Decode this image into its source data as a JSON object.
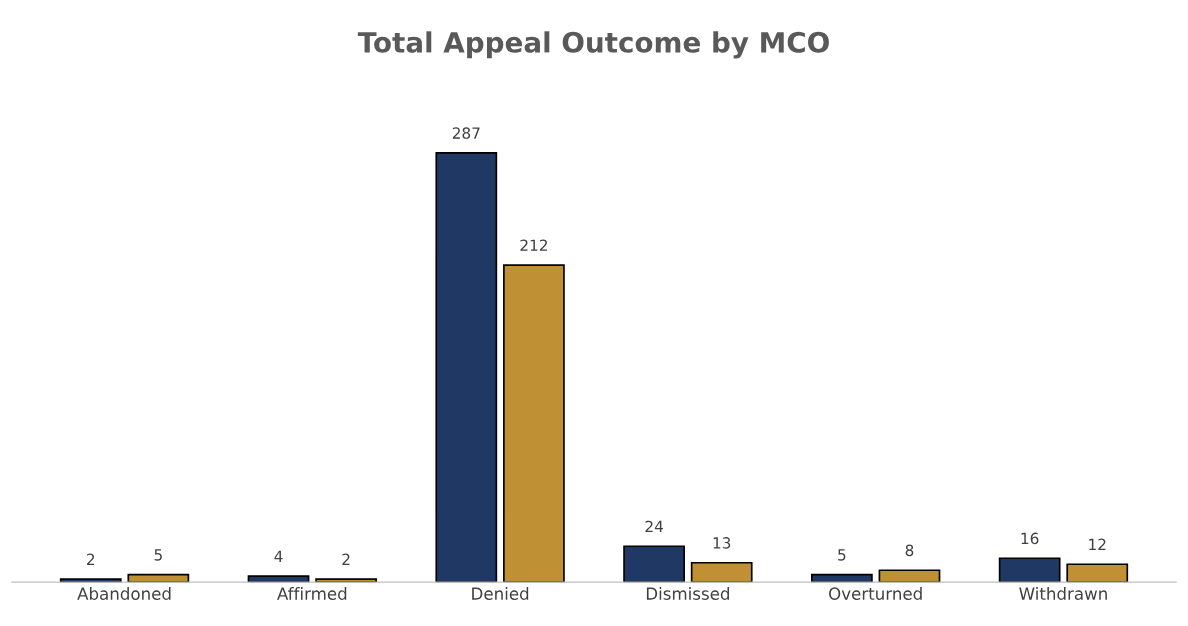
{
  "chart_data": {
    "type": "bar",
    "title": "Total Appeal Outcome by MCO",
    "categories": [
      "Abandoned",
      "Affirmed",
      "Denied",
      "Dismissed",
      "Overturned",
      "Withdrawn"
    ],
    "series": [
      {
        "color": "#1f3864",
        "values": [
          2,
          4,
          287,
          24,
          5,
          16
        ]
      },
      {
        "color": "#c09035",
        "values": [
          5,
          2,
          212,
          13,
          8,
          12
        ]
      }
    ],
    "data_labels": true,
    "tick_labels": "x",
    "grid": false
  }
}
